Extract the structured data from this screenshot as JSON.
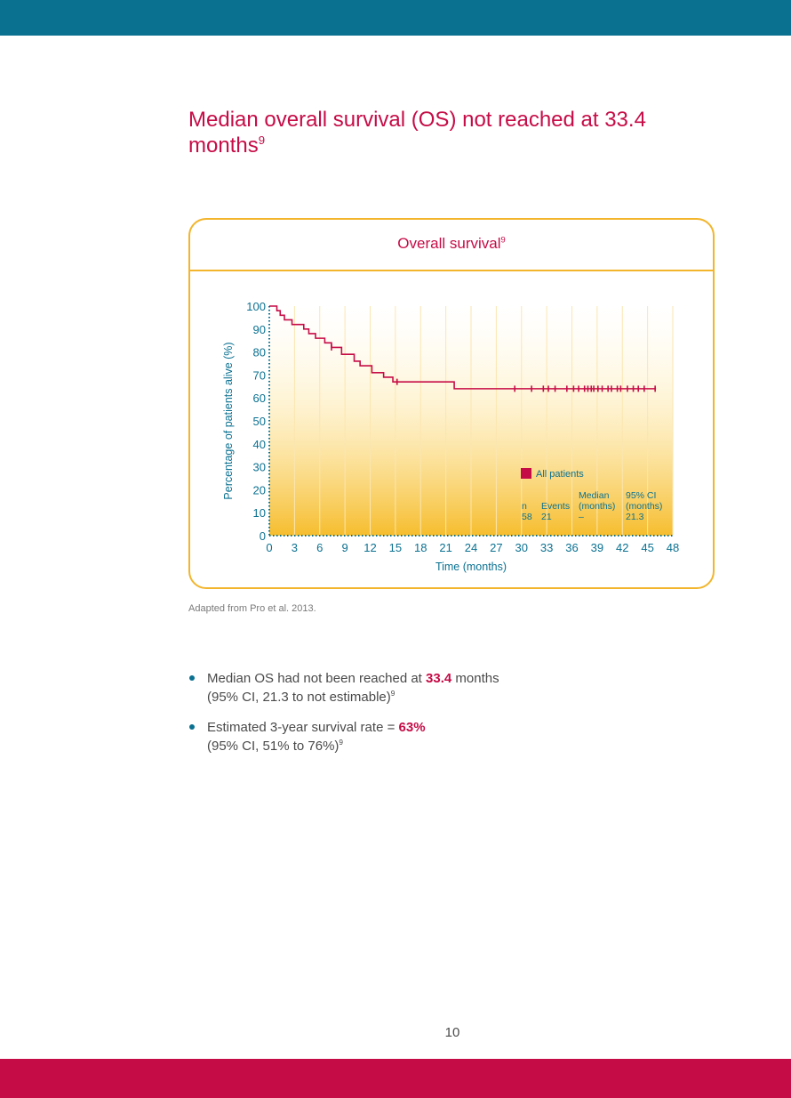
{
  "page": {
    "title": "Median overall survival (OS) not reached at 33.4 months",
    "title_ref": "9",
    "source_note": "Adapted from Pro et al. 2013.",
    "page_number": "10",
    "colors": {
      "brand_teal": "#0b7191",
      "brand_crimson": "#c60c47",
      "chart_gold": "#f2b52c"
    }
  },
  "chart": {
    "title": "Overall survival",
    "title_ref": "9"
  },
  "chart_data": {
    "type": "line",
    "title": "Overall survival",
    "xlabel": "Time (months)",
    "ylabel": "Percentage of patients alive (%)",
    "xlim": [
      0,
      48
    ],
    "ylim": [
      0,
      100
    ],
    "x_ticks": [
      0,
      3,
      6,
      9,
      12,
      15,
      18,
      21,
      24,
      27,
      30,
      33,
      36,
      39,
      42,
      45,
      48
    ],
    "y_ticks": [
      0,
      10,
      20,
      30,
      40,
      50,
      60,
      70,
      80,
      90,
      100
    ],
    "series": [
      {
        "name": "All patients",
        "color": "#c60c47",
        "step": true,
        "x": [
          0,
          0.9,
          1.3,
          1.8,
          2.7,
          4.1,
          4.7,
          5.5,
          6.6,
          7.4,
          8.6,
          10.1,
          10.8,
          12.2,
          13.6,
          14.7,
          22.0,
          46.0
        ],
        "y": [
          100,
          98,
          96,
          94,
          92,
          90,
          88,
          86,
          84,
          82,
          79,
          76,
          74,
          71,
          69,
          67,
          64,
          64
        ],
        "censored_x": [
          7.4,
          15.2,
          29.2,
          31.2,
          32.6,
          33.2,
          34.0,
          35.4,
          36.2,
          36.8,
          37.5,
          37.9,
          38.3,
          38.6,
          39.1,
          39.6,
          40.3,
          40.7,
          41.4,
          41.8,
          42.6,
          43.3,
          43.9,
          44.6,
          45.9
        ]
      }
    ],
    "legend": {
      "label": "All patients",
      "stats": [
        {
          "header": "n",
          "value": "58"
        },
        {
          "header": "Events",
          "value": "21"
        },
        {
          "header": "Median (months)",
          "value": "–"
        },
        {
          "header": "95% CI (months)",
          "value": "21.3"
        }
      ]
    },
    "grid": true
  },
  "bullets": [
    {
      "pre": "Median OS had not been reached at ",
      "highlight": "33.4",
      "post": " months",
      "line2": "(95% CI, 21.3 to not estimable)",
      "ref": "9"
    },
    {
      "pre": "Estimated 3-year survival rate = ",
      "highlight": "63%",
      "post": "",
      "line2": "(95% CI, 51% to 76%)",
      "ref": "9"
    }
  ]
}
